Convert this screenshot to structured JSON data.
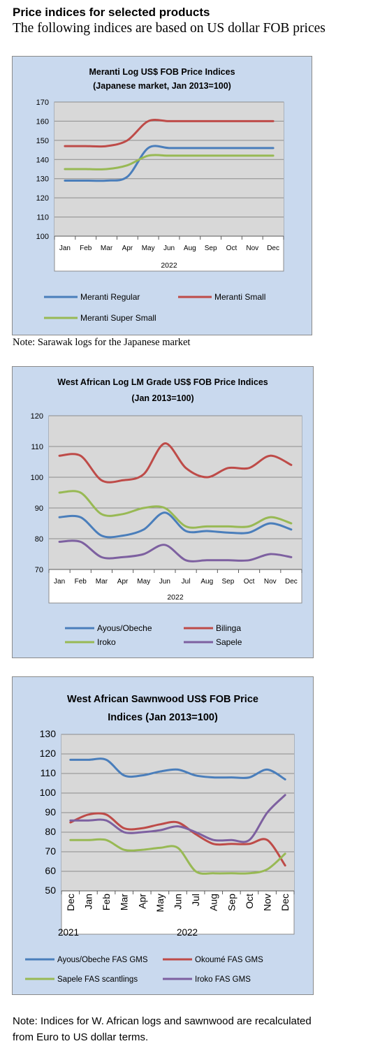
{
  "header": {
    "title": "Price indices for selected products",
    "subtitle": "The following indices are based on US dollar FOB prices"
  },
  "notes": {
    "chart1": "Note: Sarawak logs for the Japanese market",
    "chart3_line1": "Note: Indices for W. African logs and sawnwood are recalculated",
    "chart3_line2": "from Euro to US dollar terms."
  },
  "chart_data": [
    {
      "type": "line",
      "title_lines": [
        "Meranti Log US$ FOB Price Indices",
        "(Japanese market, Jan 2013=100)"
      ],
      "categories": [
        "Jan",
        "Feb",
        "Mar",
        "Apr",
        "May",
        "Jun",
        "Aug",
        "Sep",
        "Oct",
        "Nov",
        "Dec"
      ],
      "group_label": "2022",
      "ylim": [
        100,
        170
      ],
      "yticks": [
        100,
        110,
        120,
        130,
        140,
        150,
        160,
        170
      ],
      "grid": true,
      "legend_position": "bottom",
      "series": [
        {
          "name": "Meranti Regular",
          "color": "#4a7ebb",
          "values": [
            129,
            129,
            129,
            131,
            146,
            146,
            146,
            146,
            146,
            146,
            146
          ]
        },
        {
          "name": "Meranti Small",
          "color": "#be4b48",
          "values": [
            147,
            147,
            147,
            150,
            160,
            160,
            160,
            160,
            160,
            160,
            160
          ]
        },
        {
          "name": "Meranti Super Small",
          "color": "#98b954",
          "values": [
            135,
            135,
            135,
            137,
            142,
            142,
            142,
            142,
            142,
            142,
            142
          ]
        }
      ]
    },
    {
      "type": "line",
      "title_lines": [
        "West African Log LM Grade US$ FOB Price Indices",
        "(Jan 2013=100)"
      ],
      "categories": [
        "Jan",
        "Feb",
        "Mar",
        "Apr",
        "May",
        "Jun",
        "Jul",
        "Aug",
        "Sep",
        "Oct",
        "Nov",
        "Dec"
      ],
      "group_label": "2022",
      "ylim": [
        70,
        120
      ],
      "yticks": [
        70,
        80,
        90,
        100,
        110,
        120
      ],
      "grid": true,
      "legend_position": "bottom",
      "series": [
        {
          "name": "Ayous/Obeche",
          "color": "#4a7ebb",
          "values": [
            87,
            87,
            81,
            81,
            83,
            88.5,
            82.5,
            82.5,
            82,
            82,
            85,
            83
          ]
        },
        {
          "name": "Bilinga",
          "color": "#be4b48",
          "values": [
            107,
            107,
            99,
            99,
            101,
            111,
            103,
            100,
            103,
            103,
            107,
            104
          ]
        },
        {
          "name": "Iroko",
          "color": "#98b954",
          "values": [
            95,
            95,
            88,
            88,
            90,
            90,
            84,
            84,
            84,
            84,
            87,
            85
          ]
        },
        {
          "name": "Sapele",
          "color": "#7d60a0",
          "values": [
            79,
            79,
            74,
            74,
            75,
            78,
            73,
            73,
            73,
            73,
            75,
            74
          ]
        }
      ]
    },
    {
      "type": "line",
      "title_lines": [
        "West African Sawnwood US$ FOB Price",
        "Indices (Jan 2013=100)"
      ],
      "categories": [
        "Dec",
        "Jan",
        "Feb",
        "Mar",
        "Apr",
        "May",
        "Jun",
        "Jul",
        "Aug",
        "Sep",
        "Oct",
        "Nov",
        "Dec"
      ],
      "year_labels": [
        "2021",
        "2022"
      ],
      "ylim": [
        50,
        130
      ],
      "yticks": [
        50,
        60,
        70,
        80,
        90,
        100,
        110,
        120,
        130
      ],
      "grid": true,
      "legend_position": "bottom",
      "series": [
        {
          "name": "Ayous/Obeche  FAS GMS",
          "color": "#4a7ebb",
          "values": [
            117,
            117,
            117,
            109,
            109,
            111,
            112,
            109,
            108,
            108,
            108,
            112,
            107
          ]
        },
        {
          "name": "Okoumé  FAS GMS",
          "color": "#be4b48",
          "values": [
            85,
            89,
            89,
            82,
            82,
            84,
            85,
            79,
            74,
            74,
            74,
            76,
            63
          ]
        },
        {
          "name": "Sapele FAS scantlings",
          "color": "#98b954",
          "values": [
            76,
            76,
            76,
            71,
            71,
            72,
            72,
            60,
            59,
            59,
            59,
            61,
            69
          ]
        },
        {
          "name": "Iroko FAS GMS",
          "color": "#7d60a0",
          "values": [
            86,
            86,
            86,
            80,
            80,
            81,
            83,
            80,
            76,
            76,
            76,
            90,
            99
          ]
        }
      ]
    }
  ]
}
